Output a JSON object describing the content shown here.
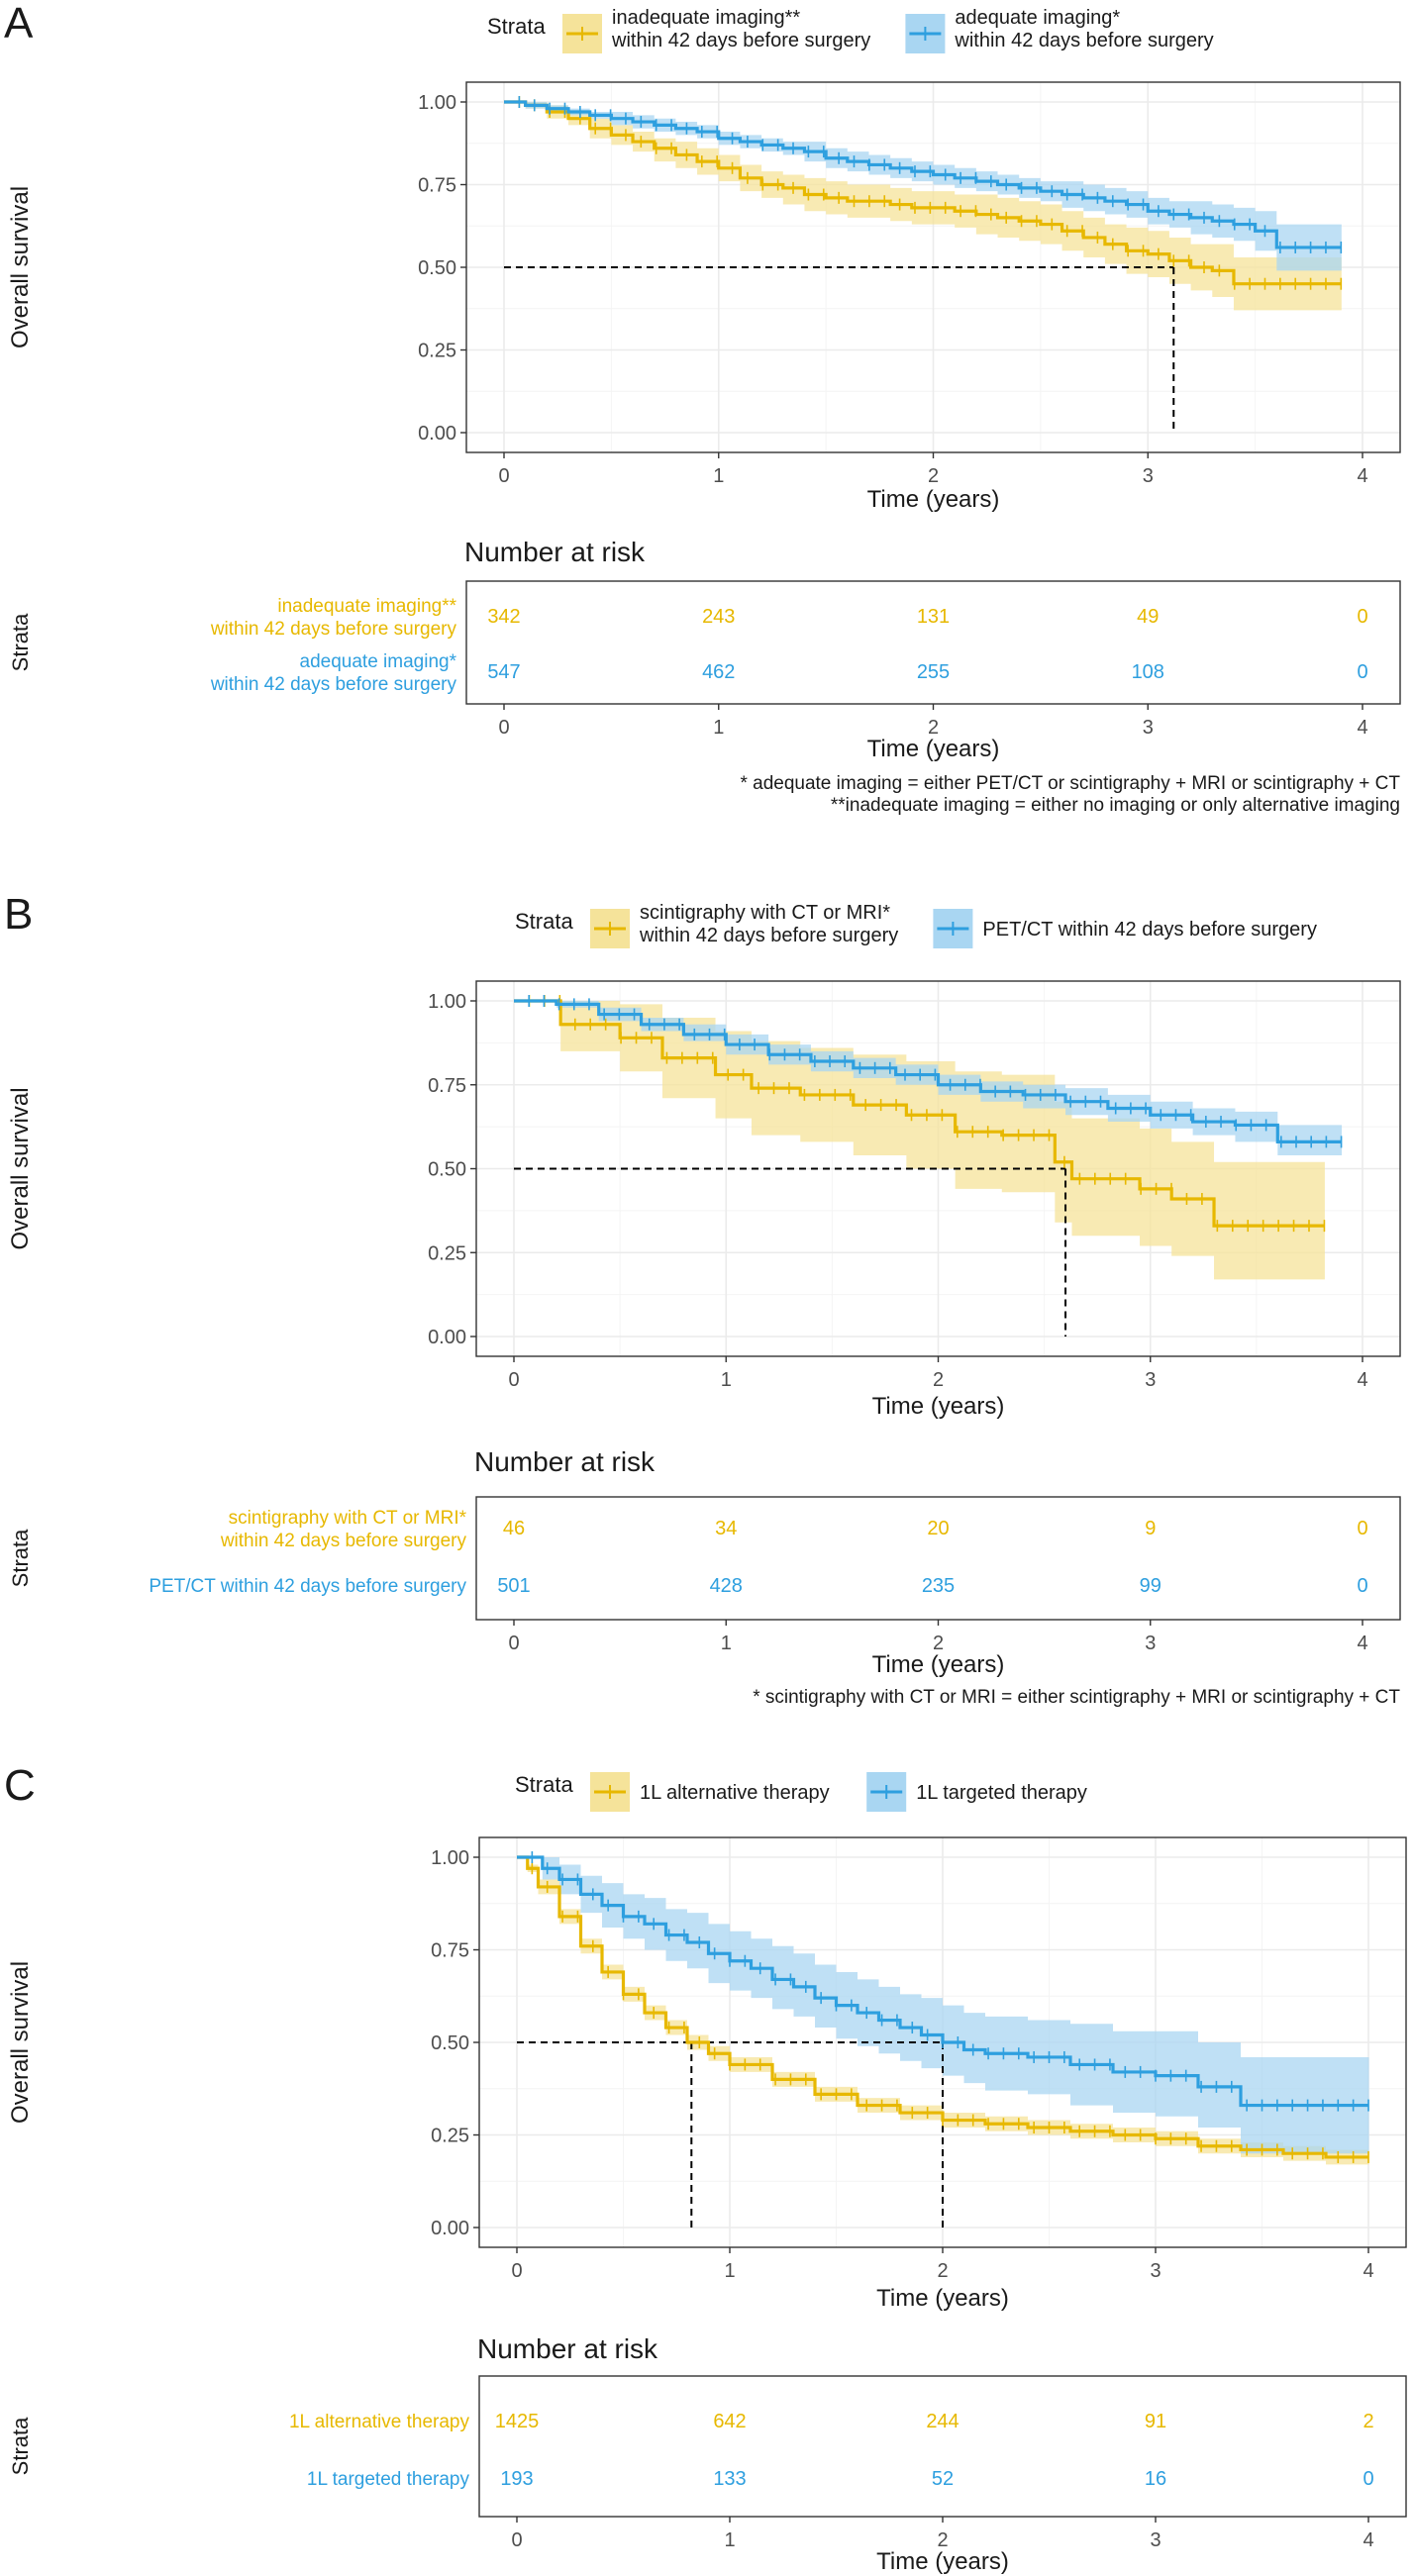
{
  "colors": {
    "alt": "#E7B800",
    "alt_fill": "#F5E39A",
    "ref": "#2E9FDF",
    "ref_fill": "#A9D6F2",
    "grid": "#ebebeb",
    "grid_minor": "#f4f4f4"
  },
  "common": {
    "ylabel": "Overall survival",
    "xlabel": "Time (years)",
    "risk_title": "Number at risk",
    "strata_label": "Strata",
    "legend_title": "Strata"
  },
  "panels": [
    {
      "letter": "A",
      "legend": [
        "inadequate imaging**\nwithin 42 days before surgery",
        "adequate imaging*\nwithin 42 days before surgery"
      ],
      "risk_labels": [
        "inadequate imaging**\nwithin 42 days before surgery",
        "adequate imaging*\nwithin 42 days before surgery"
      ],
      "risk_counts": [
        [
          342,
          243,
          131,
          49,
          0
        ],
        [
          547,
          462,
          255,
          108,
          0
        ]
      ],
      "footnotes": [
        "* adequate imaging = either PET/CT or scintigraphy + MRI or scintigraphy + CT",
        "**inadequate imaging = either no imaging or only alternative imaging"
      ]
    },
    {
      "letter": "B",
      "legend": [
        "scintigraphy with CT or MRI*\nwithin 42 days before surgery",
        "PET/CT within 42 days before surgery"
      ],
      "risk_labels": [
        "scintigraphy with CT or MRI*\nwithin 42 days before surgery",
        "PET/CT within 42 days before surgery"
      ],
      "risk_counts": [
        [
          46,
          34,
          20,
          9,
          0
        ],
        [
          501,
          428,
          235,
          99,
          0
        ]
      ],
      "footnotes": [
        "* scintigraphy with CT or MRI = either scintigraphy + MRI or scintigraphy + CT"
      ]
    },
    {
      "letter": "C",
      "legend": [
        "1L alternative therapy",
        "1L targeted therapy"
      ],
      "risk_labels": [
        "1L alternative therapy",
        "1L targeted therapy"
      ],
      "risk_counts": [
        [
          1425,
          642,
          244,
          91,
          2
        ],
        [
          193,
          133,
          52,
          16,
          0
        ]
      ],
      "footnotes": []
    }
  ],
  "chart_data": [
    {
      "type": "line",
      "title": "A",
      "xlabel": "Time (years)",
      "ylabel": "Overall survival",
      "xlim": [
        0,
        4
      ],
      "ylim": [
        0,
        1
      ],
      "xticks": [
        0,
        1,
        2,
        3,
        4
      ],
      "yticks": [
        "0.00",
        "0.25",
        "0.50",
        "0.75",
        "1.00"
      ],
      "legend_title": "Strata",
      "legend_position": "top",
      "grid": true,
      "median_lines": [
        3.12
      ],
      "series": [
        {
          "name": "inadequate imaging** within 42 days before surgery",
          "color": "#E7B800",
          "x": [
            0,
            0.1,
            0.2,
            0.3,
            0.4,
            0.5,
            0.6,
            0.7,
            0.8,
            0.9,
            1.0,
            1.1,
            1.2,
            1.3,
            1.4,
            1.5,
            1.6,
            1.7,
            1.8,
            1.9,
            2.0,
            2.1,
            2.2,
            2.3,
            2.4,
            2.5,
            2.6,
            2.7,
            2.8,
            2.9,
            3.0,
            3.1,
            3.2,
            3.3,
            3.4,
            3.5,
            3.6,
            3.7,
            3.8,
            3.9
          ],
          "y": [
            1.0,
            0.99,
            0.97,
            0.95,
            0.92,
            0.9,
            0.88,
            0.86,
            0.84,
            0.82,
            0.8,
            0.77,
            0.75,
            0.74,
            0.72,
            0.71,
            0.7,
            0.7,
            0.69,
            0.68,
            0.68,
            0.67,
            0.66,
            0.65,
            0.64,
            0.63,
            0.61,
            0.59,
            0.57,
            0.55,
            0.54,
            0.52,
            0.5,
            0.49,
            0.45,
            0.45,
            0.45,
            0.45,
            0.45,
            0.45
          ],
          "ci_lower": [
            1.0,
            0.98,
            0.95,
            0.93,
            0.89,
            0.87,
            0.85,
            0.82,
            0.8,
            0.78,
            0.76,
            0.73,
            0.71,
            0.69,
            0.67,
            0.66,
            0.65,
            0.65,
            0.64,
            0.63,
            0.63,
            0.62,
            0.6,
            0.59,
            0.58,
            0.57,
            0.55,
            0.53,
            0.51,
            0.48,
            0.47,
            0.45,
            0.43,
            0.41,
            0.37,
            0.37,
            0.37,
            0.37,
            0.37,
            0.37
          ],
          "ci_upper": [
            1.0,
            1.0,
            0.99,
            0.97,
            0.95,
            0.93,
            0.91,
            0.89,
            0.88,
            0.86,
            0.84,
            0.81,
            0.79,
            0.78,
            0.77,
            0.76,
            0.75,
            0.75,
            0.74,
            0.73,
            0.73,
            0.72,
            0.72,
            0.71,
            0.7,
            0.69,
            0.67,
            0.65,
            0.63,
            0.62,
            0.61,
            0.59,
            0.57,
            0.57,
            0.53,
            0.53,
            0.53,
            0.53,
            0.53,
            0.53
          ]
        },
        {
          "name": "adequate imaging* within 42 days before surgery",
          "color": "#2E9FDF",
          "x": [
            0,
            0.1,
            0.2,
            0.3,
            0.4,
            0.5,
            0.6,
            0.7,
            0.8,
            0.9,
            1.0,
            1.1,
            1.2,
            1.3,
            1.4,
            1.5,
            1.6,
            1.7,
            1.8,
            1.9,
            2.0,
            2.1,
            2.2,
            2.3,
            2.4,
            2.5,
            2.6,
            2.7,
            2.8,
            2.9,
            3.0,
            3.1,
            3.2,
            3.3,
            3.4,
            3.5,
            3.6,
            3.7,
            3.8,
            3.9
          ],
          "y": [
            1.0,
            0.99,
            0.98,
            0.97,
            0.96,
            0.95,
            0.94,
            0.93,
            0.92,
            0.91,
            0.89,
            0.88,
            0.87,
            0.86,
            0.85,
            0.83,
            0.82,
            0.81,
            0.8,
            0.79,
            0.78,
            0.77,
            0.76,
            0.75,
            0.74,
            0.73,
            0.72,
            0.71,
            0.7,
            0.69,
            0.67,
            0.66,
            0.65,
            0.64,
            0.63,
            0.61,
            0.56,
            0.56,
            0.56,
            0.56
          ],
          "ci_lower": [
            1.0,
            0.98,
            0.97,
            0.96,
            0.95,
            0.93,
            0.92,
            0.91,
            0.9,
            0.89,
            0.87,
            0.86,
            0.85,
            0.84,
            0.82,
            0.8,
            0.79,
            0.78,
            0.77,
            0.76,
            0.75,
            0.74,
            0.73,
            0.72,
            0.71,
            0.7,
            0.68,
            0.67,
            0.66,
            0.65,
            0.63,
            0.62,
            0.6,
            0.59,
            0.58,
            0.55,
            0.49,
            0.49,
            0.49,
            0.49
          ],
          "ci_upper": [
            1.0,
            1.0,
            0.99,
            0.98,
            0.97,
            0.97,
            0.96,
            0.95,
            0.94,
            0.93,
            0.91,
            0.9,
            0.89,
            0.88,
            0.88,
            0.86,
            0.85,
            0.84,
            0.83,
            0.82,
            0.81,
            0.8,
            0.79,
            0.78,
            0.77,
            0.76,
            0.76,
            0.75,
            0.74,
            0.73,
            0.71,
            0.7,
            0.7,
            0.69,
            0.68,
            0.67,
            0.63,
            0.63,
            0.63,
            0.63
          ]
        }
      ],
      "risk_table": {
        "title": "Number at risk",
        "times": [
          0,
          1,
          2,
          3,
          4
        ],
        "rows": [
          {
            "name": "inadequate imaging** within 42 days before surgery",
            "counts": [
              342,
              243,
              131,
              49,
              0
            ]
          },
          {
            "name": "adequate imaging* within 42 days before surgery",
            "counts": [
              547,
              462,
              255,
              108,
              0
            ]
          }
        ]
      }
    },
    {
      "type": "line",
      "title": "B",
      "xlabel": "Time (years)",
      "ylabel": "Overall survival",
      "xlim": [
        0,
        4
      ],
      "ylim": [
        0,
        1
      ],
      "xticks": [
        0,
        1,
        2,
        3,
        4
      ],
      "yticks": [
        "0.00",
        "0.25",
        "0.50",
        "0.75",
        "1.00"
      ],
      "legend_title": "Strata",
      "legend_position": "top",
      "grid": true,
      "median_lines": [
        2.6
      ],
      "series": [
        {
          "name": "scintigraphy with CT or MRI* within 42 days before surgery",
          "color": "#E7B800",
          "x": [
            0,
            0.22,
            0.5,
            0.7,
            0.95,
            1.12,
            1.35,
            1.6,
            1.85,
            2.08,
            2.3,
            2.55,
            2.63,
            2.95,
            3.1,
            3.3,
            3.82
          ],
          "y": [
            1.0,
            0.93,
            0.89,
            0.83,
            0.78,
            0.74,
            0.72,
            0.69,
            0.66,
            0.61,
            0.6,
            0.52,
            0.47,
            0.44,
            0.41,
            0.33,
            0.33
          ],
          "ci_lower": [
            1.0,
            0.85,
            0.79,
            0.71,
            0.65,
            0.6,
            0.58,
            0.54,
            0.5,
            0.44,
            0.43,
            0.34,
            0.3,
            0.27,
            0.24,
            0.17,
            0.17
          ],
          "ci_upper": [
            1.0,
            1.0,
            0.99,
            0.95,
            0.91,
            0.88,
            0.86,
            0.84,
            0.82,
            0.79,
            0.78,
            0.7,
            0.65,
            0.62,
            0.58,
            0.52,
            0.52
          ]
        },
        {
          "name": "PET/CT within 42 days before surgery",
          "color": "#2E9FDF",
          "x": [
            0,
            0.2,
            0.4,
            0.6,
            0.8,
            1.0,
            1.2,
            1.4,
            1.6,
            1.8,
            2.0,
            2.2,
            2.4,
            2.6,
            2.8,
            3.0,
            3.2,
            3.4,
            3.6,
            3.8,
            3.9
          ],
          "y": [
            1.0,
            0.99,
            0.96,
            0.93,
            0.9,
            0.87,
            0.84,
            0.82,
            0.8,
            0.78,
            0.75,
            0.73,
            0.72,
            0.7,
            0.68,
            0.66,
            0.64,
            0.63,
            0.58,
            0.58,
            0.58
          ],
          "ci_lower": [
            1.0,
            0.98,
            0.94,
            0.91,
            0.88,
            0.84,
            0.81,
            0.79,
            0.77,
            0.75,
            0.72,
            0.7,
            0.68,
            0.66,
            0.64,
            0.62,
            0.6,
            0.58,
            0.54,
            0.54,
            0.54
          ],
          "ci_upper": [
            1.0,
            1.0,
            0.98,
            0.95,
            0.93,
            0.9,
            0.87,
            0.85,
            0.83,
            0.81,
            0.78,
            0.76,
            0.75,
            0.74,
            0.72,
            0.7,
            0.68,
            0.67,
            0.63,
            0.63,
            0.63
          ]
        }
      ],
      "risk_table": {
        "title": "Number at risk",
        "times": [
          0,
          1,
          2,
          3,
          4
        ],
        "rows": [
          {
            "name": "scintigraphy with CT or MRI* within 42 days before surgery",
            "counts": [
              46,
              34,
              20,
              9,
              0
            ]
          },
          {
            "name": "PET/CT within 42 days before surgery",
            "counts": [
              501,
              428,
              235,
              99,
              0
            ]
          }
        ]
      }
    },
    {
      "type": "line",
      "title": "C",
      "xlabel": "Time (years)",
      "ylabel": "Overall survival",
      "xlim": [
        0,
        4
      ],
      "ylim": [
        0,
        1
      ],
      "xticks": [
        0,
        1,
        2,
        3,
        4
      ],
      "yticks": [
        "0.00",
        "0.25",
        "0.50",
        "0.75",
        "1.00"
      ],
      "legend_title": "Strata",
      "legend_position": "top",
      "grid": true,
      "median_lines": [
        0.82,
        2.0
      ],
      "series": [
        {
          "name": "1L alternative therapy",
          "color": "#E7B800",
          "x": [
            0,
            0.05,
            0.1,
            0.2,
            0.3,
            0.4,
            0.5,
            0.6,
            0.7,
            0.8,
            0.9,
            1.0,
            1.2,
            1.4,
            1.6,
            1.8,
            2.0,
            2.2,
            2.4,
            2.6,
            2.8,
            3.0,
            3.2,
            3.4,
            3.6,
            3.8,
            4.0
          ],
          "y": [
            1.0,
            0.97,
            0.92,
            0.84,
            0.76,
            0.69,
            0.63,
            0.58,
            0.54,
            0.5,
            0.47,
            0.44,
            0.4,
            0.36,
            0.33,
            0.31,
            0.29,
            0.28,
            0.27,
            0.26,
            0.25,
            0.24,
            0.22,
            0.21,
            0.2,
            0.19,
            0.19
          ],
          "ci_lower": [
            1.0,
            0.96,
            0.9,
            0.82,
            0.74,
            0.67,
            0.61,
            0.56,
            0.52,
            0.48,
            0.45,
            0.42,
            0.38,
            0.34,
            0.31,
            0.29,
            0.27,
            0.26,
            0.25,
            0.24,
            0.23,
            0.22,
            0.2,
            0.19,
            0.18,
            0.17,
            0.17
          ],
          "ci_upper": [
            1.0,
            0.98,
            0.94,
            0.86,
            0.78,
            0.71,
            0.65,
            0.6,
            0.56,
            0.52,
            0.49,
            0.46,
            0.42,
            0.38,
            0.35,
            0.33,
            0.31,
            0.3,
            0.29,
            0.28,
            0.27,
            0.26,
            0.24,
            0.23,
            0.22,
            0.21,
            0.21
          ]
        },
        {
          "name": "1L targeted therapy",
          "color": "#2E9FDF",
          "x": [
            0,
            0.12,
            0.2,
            0.3,
            0.4,
            0.5,
            0.6,
            0.7,
            0.8,
            0.9,
            1.0,
            1.1,
            1.2,
            1.3,
            1.4,
            1.5,
            1.6,
            1.7,
            1.8,
            1.9,
            2.0,
            2.1,
            2.2,
            2.4,
            2.6,
            2.8,
            3.0,
            3.2,
            3.4,
            3.6,
            3.8,
            4.0
          ],
          "y": [
            1.0,
            0.97,
            0.94,
            0.9,
            0.87,
            0.84,
            0.82,
            0.79,
            0.77,
            0.74,
            0.72,
            0.7,
            0.67,
            0.65,
            0.62,
            0.6,
            0.58,
            0.56,
            0.54,
            0.52,
            0.5,
            0.48,
            0.47,
            0.46,
            0.44,
            0.42,
            0.41,
            0.38,
            0.33,
            0.33,
            0.33,
            0.33
          ],
          "ci_lower": [
            1.0,
            0.94,
            0.9,
            0.85,
            0.81,
            0.78,
            0.75,
            0.72,
            0.7,
            0.66,
            0.64,
            0.62,
            0.59,
            0.57,
            0.54,
            0.51,
            0.49,
            0.47,
            0.45,
            0.43,
            0.41,
            0.39,
            0.37,
            0.36,
            0.33,
            0.31,
            0.3,
            0.27,
            0.2,
            0.2,
            0.2,
            0.2
          ],
          "ci_upper": [
            1.0,
            1.0,
            0.98,
            0.95,
            0.93,
            0.9,
            0.89,
            0.86,
            0.85,
            0.82,
            0.8,
            0.78,
            0.76,
            0.74,
            0.71,
            0.69,
            0.67,
            0.65,
            0.63,
            0.62,
            0.6,
            0.58,
            0.57,
            0.56,
            0.55,
            0.53,
            0.53,
            0.5,
            0.46,
            0.46,
            0.46,
            0.46
          ]
        }
      ],
      "risk_table": {
        "title": "Number at risk",
        "times": [
          0,
          1,
          2,
          3,
          4
        ],
        "rows": [
          {
            "name": "1L alternative therapy",
            "counts": [
              1425,
              642,
              244,
              91,
              2
            ]
          },
          {
            "name": "1L targeted therapy",
            "counts": [
              193,
              133,
              52,
              16,
              0
            ]
          }
        ]
      }
    }
  ]
}
